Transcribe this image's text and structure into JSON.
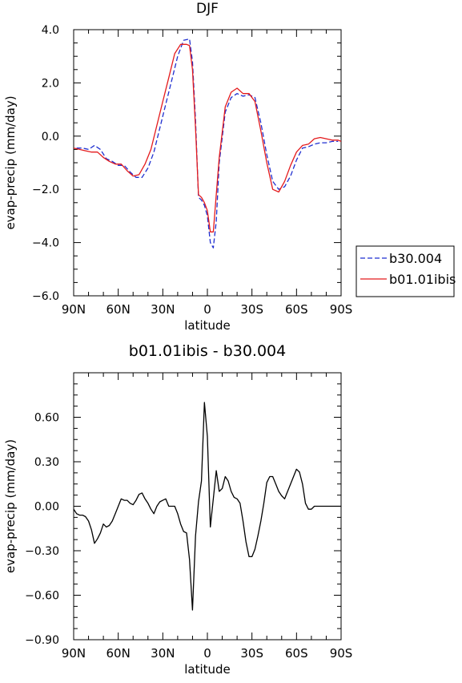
{
  "chart_data": [
    {
      "type": "line",
      "title": "DJF",
      "xlabel": "latitude",
      "ylabel": "evap-precip (mm/day)",
      "xlim": [
        90,
        -90
      ],
      "ylim": [
        -6,
        4
      ],
      "x_tick_values": [
        90,
        60,
        30,
        0,
        -30,
        -60,
        -90
      ],
      "x_tick_labels": [
        "90N",
        "60N",
        "30N",
        "0",
        "30S",
        "60S",
        "90S"
      ],
      "y_tick_values": [
        4,
        2,
        0,
        -2,
        -4,
        -6
      ],
      "y_tick_labels": [
        "4.0",
        "2.0",
        "0.0",
        "-2.0",
        "-4.0",
        "-6.0"
      ],
      "legend_position": "right",
      "series": [
        {
          "name": "b30.004",
          "color": "#1f2fd0",
          "dash": "dashed",
          "x": [
            88,
            84,
            80,
            76,
            72,
            68,
            64,
            60,
            56,
            52,
            48,
            44,
            40,
            36,
            32,
            28,
            24,
            20,
            16,
            12,
            10,
            8,
            6,
            4,
            2,
            0,
            -2,
            -4,
            -6,
            -8,
            -12,
            -16,
            -20,
            -24,
            -28,
            -32,
            -36,
            -40,
            -44,
            -48,
            -52,
            -56,
            -60,
            -64,
            -68,
            -72,
            -76,
            -80,
            -84,
            -88
          ],
          "y": [
            -0.45,
            -0.45,
            -0.5,
            -0.35,
            -0.5,
            -0.85,
            -0.95,
            -1.1,
            -1.1,
            -1.35,
            -1.55,
            -1.55,
            -1.2,
            -0.6,
            0.3,
            1.2,
            2.1,
            3.0,
            3.6,
            3.65,
            2.8,
            0.6,
            -2.3,
            -2.4,
            -2.6,
            -3.0,
            -4.0,
            -4.2,
            -3.2,
            -1.0,
            0.9,
            1.45,
            1.6,
            1.5,
            1.55,
            1.45,
            0.5,
            -0.7,
            -1.7,
            -2.0,
            -1.9,
            -1.5,
            -0.9,
            -0.45,
            -0.4,
            -0.3,
            -0.25,
            -0.25,
            -0.2,
            -0.2
          ]
        },
        {
          "name": "b01.01ibis",
          "color": "#e41a1c",
          "dash": "solid",
          "x": [
            90,
            86,
            82,
            78,
            74,
            70,
            66,
            62,
            58,
            54,
            50,
            46,
            42,
            38,
            34,
            30,
            26,
            22,
            18,
            14,
            12,
            10,
            8,
            6,
            4,
            2,
            0,
            -2,
            -4,
            -6,
            -8,
            -12,
            -16,
            -20,
            -24,
            -28,
            -32,
            -36,
            -40,
            -44,
            -48,
            -52,
            -56,
            -60,
            -64,
            -68,
            -72,
            -76,
            -80,
            -84,
            -88,
            -90
          ],
          "y": [
            -0.45,
            -0.5,
            -0.55,
            -0.6,
            -0.6,
            -0.8,
            -0.95,
            -1.05,
            -1.05,
            -1.3,
            -1.5,
            -1.45,
            -1.05,
            -0.5,
            0.4,
            1.3,
            2.2,
            3.1,
            3.45,
            3.45,
            3.4,
            2.5,
            0.3,
            -2.2,
            -2.3,
            -2.5,
            -2.8,
            -3.6,
            -3.6,
            -2.2,
            -0.8,
            1.1,
            1.65,
            1.8,
            1.6,
            1.6,
            1.3,
            0.2,
            -1.0,
            -2.0,
            -2.1,
            -1.7,
            -1.1,
            -0.6,
            -0.35,
            -0.3,
            -0.1,
            -0.05,
            -0.1,
            -0.15,
            -0.15,
            -0.2
          ]
        }
      ]
    },
    {
      "type": "line",
      "title": "b01.01ibis - b30.004",
      "xlabel": "latitude",
      "ylabel": "evap-precip (mm/day)",
      "xlim": [
        90,
        -90
      ],
      "ylim": [
        -0.9,
        0.9
      ],
      "x_tick_values": [
        90,
        60,
        30,
        0,
        -30,
        -60,
        -90
      ],
      "x_tick_labels": [
        "90N",
        "60N",
        "30N",
        "0",
        "30S",
        "60S",
        "90S"
      ],
      "y_tick_values": [
        0.6,
        0.3,
        0,
        -0.3,
        -0.6,
        -0.9
      ],
      "y_tick_labels": [
        "0.60",
        "0.30",
        "0.00",
        "-0.30",
        "-0.60",
        "-0.90"
      ],
      "series": [
        {
          "color": "#000000",
          "dash": "solid",
          "x": [
            90,
            88,
            86,
            84,
            82,
            80,
            78,
            76,
            74,
            72,
            70,
            68,
            66,
            64,
            62,
            60,
            58,
            56,
            54,
            52,
            50,
            48,
            46,
            44,
            42,
            40,
            38,
            36,
            34,
            32,
            30,
            28,
            26,
            24,
            22,
            20,
            18,
            16,
            14,
            12,
            10,
            8,
            6,
            4,
            2,
            0,
            -2,
            -4,
            -6,
            -8,
            -10,
            -12,
            -14,
            -16,
            -18,
            -20,
            -22,
            -24,
            -26,
            -28,
            -30,
            -32,
            -34,
            -36,
            -38,
            -40,
            -42,
            -44,
            -46,
            -48,
            -50,
            -52,
            -54,
            -56,
            -58,
            -60,
            -62,
            -64,
            -66,
            -68,
            -70,
            -72,
            -74,
            -76,
            -78,
            -80,
            -82,
            -84,
            -86,
            -88,
            -90
          ],
          "y": [
            -0.02,
            -0.05,
            -0.06,
            -0.06,
            -0.07,
            -0.1,
            -0.16,
            -0.25,
            -0.22,
            -0.18,
            -0.12,
            -0.14,
            -0.13,
            -0.1,
            -0.05,
            0.0,
            0.05,
            0.04,
            0.04,
            0.02,
            0.01,
            0.04,
            0.08,
            0.09,
            0.05,
            0.02,
            -0.02,
            -0.05,
            0.0,
            0.03,
            0.04,
            0.05,
            0.0,
            0.0,
            0.0,
            -0.05,
            -0.12,
            -0.17,
            -0.18,
            -0.36,
            -0.7,
            -0.2,
            0.03,
            0.17,
            0.7,
            0.47,
            -0.14,
            0.05,
            0.24,
            0.1,
            0.12,
            0.2,
            0.17,
            0.1,
            0.06,
            0.05,
            0.02,
            -0.1,
            -0.24,
            -0.34,
            -0.34,
            -0.29,
            -0.2,
            -0.1,
            0.02,
            0.16,
            0.2,
            0.2,
            0.15,
            0.1,
            0.07,
            0.05,
            0.1,
            0.15,
            0.2,
            0.25,
            0.23,
            0.15,
            0.02,
            -0.02,
            -0.02,
            0.0,
            0.0,
            0.0,
            0.0,
            0.0,
            0.0,
            0.0,
            0.0,
            0.0,
            0.0
          ]
        }
      ]
    }
  ]
}
